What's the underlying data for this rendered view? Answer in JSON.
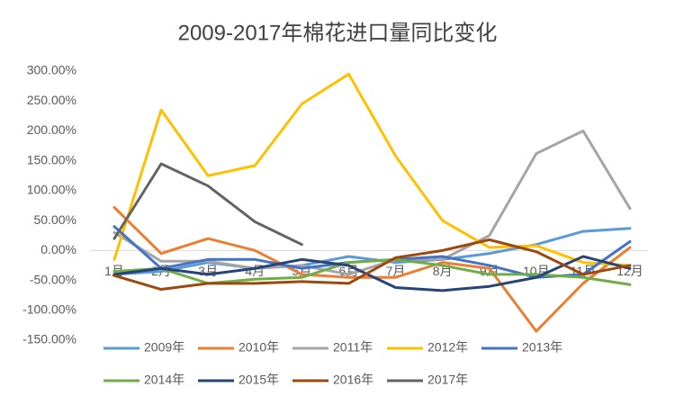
{
  "chart_data": {
    "type": "line",
    "title": "2009-2017年棉花进口量同比变化",
    "categories": [
      "1月",
      "2月",
      "3月",
      "4月",
      "5月",
      "6月",
      "7月",
      "8月",
      "9月",
      "10月",
      "11月",
      "12月"
    ],
    "series": [
      {
        "name": "2009年",
        "color": "#5b9bd5",
        "values": [
          -40,
          -35,
          -20,
          -30,
          -25,
          -10,
          -20,
          -15,
          -5,
          10,
          32,
          37
        ]
      },
      {
        "name": "2010年",
        "color": "#ed7d31",
        "values": [
          72,
          -5,
          20,
          0,
          -40,
          -45,
          -45,
          -20,
          -30,
          -135,
          -55,
          5
        ]
      },
      {
        "name": "2011年",
        "color": "#a5a5a5",
        "values": [
          30,
          -18,
          -18,
          -30,
          -25,
          -40,
          -15,
          -15,
          25,
          162,
          200,
          70
        ]
      },
      {
        "name": "2012年",
        "color": "#ffc000",
        "values": [
          -15,
          235,
          125,
          142,
          245,
          295,
          158,
          50,
          5,
          8,
          -20,
          -25
        ]
      },
      {
        "name": "2013年",
        "color": "#4472c4",
        "values": [
          40,
          -30,
          -15,
          -15,
          -30,
          -20,
          -15,
          -10,
          -25,
          -45,
          -40,
          15
        ]
      },
      {
        "name": "2014年",
        "color": "#70ad47",
        "values": [
          -35,
          -30,
          -55,
          -48,
          -45,
          -20,
          -15,
          -25,
          -40,
          -40,
          -45,
          -57
        ]
      },
      {
        "name": "2015年",
        "color": "#264478",
        "values": [
          -40,
          -30,
          -40,
          -30,
          -15,
          -25,
          -62,
          -67,
          -60,
          -45,
          -10,
          -30
        ]
      },
      {
        "name": "2016年",
        "color": "#9e480e",
        "values": [
          -42,
          -65,
          -55,
          -55,
          -52,
          -55,
          -12,
          0,
          18,
          -2,
          -40,
          -25
        ]
      },
      {
        "name": "2017年",
        "color": "#636363",
        "values": [
          20,
          145,
          108,
          48,
          10,
          null,
          null,
          null,
          null,
          null,
          null,
          null
        ]
      }
    ],
    "ylim": [
      -150,
      300
    ],
    "yticks": [
      {
        "value": -150,
        "label": "-150.00%"
      },
      {
        "value": -100,
        "label": "-100.00%"
      },
      {
        "value": -50,
        "label": "-50.00%"
      },
      {
        "value": 0,
        "label": "0.00%"
      },
      {
        "value": 50,
        "label": "50.00%"
      },
      {
        "value": 100,
        "label": "100.00%"
      },
      {
        "value": 150,
        "label": "150.00%"
      },
      {
        "value": 200,
        "label": "200.00%"
      },
      {
        "value": 250,
        "label": "250.00%"
      },
      {
        "value": 300,
        "label": "300.00%"
      }
    ],
    "grid": false,
    "legend": "bottom"
  }
}
